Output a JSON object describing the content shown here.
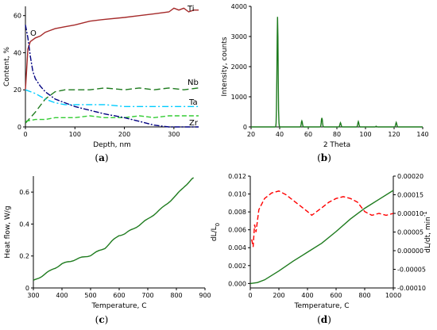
{
  "chart_data": [
    {
      "id": "a",
      "type": "line",
      "caption": "a",
      "xlabel": "Depth, nm",
      "ylabel": "Content, %",
      "xlim": [
        0,
        350
      ],
      "ylim": [
        0,
        65
      ],
      "xticks": [
        0,
        100,
        200,
        300
      ],
      "yticks": [
        0,
        20,
        40,
        60
      ],
      "series": [
        {
          "name": "Ti",
          "color": "#a52a2a",
          "dash": "solid",
          "x": [
            0,
            5,
            10,
            20,
            30,
            40,
            50,
            60,
            80,
            100,
            130,
            160,
            200,
            230,
            260,
            290,
            300,
            310,
            320,
            330,
            340,
            350
          ],
          "y": [
            20,
            42,
            46,
            48,
            49,
            51,
            52,
            53,
            54,
            55,
            57,
            58,
            59,
            60,
            61,
            62,
            64,
            63,
            64,
            62,
            63,
            63
          ]
        },
        {
          "name": "Nb",
          "color": "#1e7b1e",
          "dash": "8,4",
          "x": [
            0,
            20,
            40,
            60,
            80,
            100,
            130,
            160,
            200,
            230,
            260,
            290,
            320,
            350
          ],
          "y": [
            2,
            8,
            15,
            19,
            20,
            20,
            20,
            21,
            20,
            21,
            20,
            21,
            20,
            21
          ]
        },
        {
          "name": "Ta",
          "color": "#00ccff",
          "dash": "8,3,2,3",
          "x": [
            0,
            20,
            40,
            60,
            80,
            100,
            130,
            160,
            200,
            230,
            260,
            290,
            320,
            350
          ],
          "y": [
            20,
            18,
            15,
            13,
            12,
            12,
            12,
            12,
            11,
            11,
            11,
            11,
            11,
            11
          ]
        },
        {
          "name": "Zr",
          "color": "#33cc33",
          "dash": "6,3",
          "x": [
            0,
            20,
            40,
            60,
            80,
            100,
            130,
            160,
            200,
            230,
            260,
            290,
            320,
            350
          ],
          "y": [
            3,
            4,
            4,
            5,
            5,
            5,
            6,
            5,
            5,
            6,
            5,
            6,
            6,
            6
          ]
        },
        {
          "name": "O",
          "color": "#000080",
          "dash": "7,2,2,2",
          "x": [
            0,
            5,
            10,
            15,
            20,
            30,
            40,
            60,
            80,
            100,
            130,
            160,
            200,
            230,
            260,
            290,
            320,
            350
          ],
          "y": [
            55,
            48,
            38,
            30,
            26,
            22,
            19,
            15,
            13,
            11,
            9,
            7,
            5,
            3,
            1,
            0,
            0,
            0
          ]
        }
      ]
    },
    {
      "id": "b",
      "type": "line",
      "caption": "b",
      "xlabel": "2 Theta",
      "ylabel": "Intensity, counts",
      "xlim": [
        20,
        140
      ],
      "ylim": [
        0,
        4000
      ],
      "xticks": [
        20,
        40,
        60,
        80,
        100,
        120,
        140
      ],
      "yticks": [
        0,
        1000,
        2000,
        3000,
        4000
      ],
      "series": [
        {
          "name": "",
          "color": "#1e7b1e",
          "peaks": [
            {
              "x": 38.5,
              "y": 3650
            },
            {
              "x": 55.5,
              "y": 200
            },
            {
              "x": 69.5,
              "y": 300
            },
            {
              "x": 82.5,
              "y": 140
            },
            {
              "x": 95.0,
              "y": 180
            },
            {
              "x": 107.5,
              "y": 20
            },
            {
              "x": 121.5,
              "y": 150
            }
          ]
        }
      ]
    },
    {
      "id": "c",
      "type": "line",
      "caption": "c",
      "xlabel": "Temperature, C",
      "ylabel": "Heat flow, W/g",
      "xlim": [
        300,
        900
      ],
      "ylim": [
        0,
        0.7
      ],
      "xticks": [
        300,
        400,
        500,
        600,
        700,
        800,
        900
      ],
      "yticks": [
        0,
        0.2,
        0.4,
        0.6
      ],
      "series": [
        {
          "name": "",
          "color": "#1e7b1e",
          "x": [
            300,
            330,
            370,
            400,
            450,
            500,
            550,
            580,
            600,
            620,
            650,
            700,
            750,
            800,
            830,
            860
          ],
          "y": [
            0.045,
            0.075,
            0.12,
            0.15,
            0.18,
            0.205,
            0.25,
            0.3,
            0.33,
            0.34,
            0.37,
            0.43,
            0.5,
            0.58,
            0.64,
            0.69
          ]
        }
      ]
    },
    {
      "id": "d",
      "type": "line",
      "caption": "d",
      "xlabel": "Temperature, C",
      "ylabel_left": "dL/L",
      "ylabel_left_sub": "0",
      "ylabel_right": "dL/dt, min",
      "ylabel_right_sup": "-1",
      "xlim": [
        0,
        1000
      ],
      "ylim_left": [
        -0.0005,
        0.012
      ],
      "ylim_right": [
        -0.0001,
        0.0002
      ],
      "xticks": [
        0,
        200,
        400,
        600,
        800,
        1000
      ],
      "yticks_left": [
        "0.000",
        "0.002",
        "0.004",
        "0.006",
        "0.008",
        "0.010",
        "0.012"
      ],
      "yticks_left_values": [
        0,
        0.002,
        0.004,
        0.006,
        0.008,
        0.01,
        0.012
      ],
      "yticks_right": [
        "-0.00010",
        "-0.00005",
        "0.00000",
        "0.00005",
        "0.00010",
        "0.00015",
        "0.00020"
      ],
      "yticks_right_values": [
        -0.0001,
        -5e-05,
        0,
        5e-05,
        0.0001,
        0.00015,
        0.0002
      ],
      "series": [
        {
          "name": "",
          "axis": "left",
          "color": "#1e7b1e",
          "dash": "solid",
          "x": [
            0,
            50,
            100,
            200,
            300,
            400,
            500,
            600,
            700,
            800,
            900,
            1000
          ],
          "y": [
            0.0,
            0.0001,
            0.0004,
            0.0014,
            0.0025,
            0.0035,
            0.0045,
            0.0058,
            0.0072,
            0.0084,
            0.0094,
            0.0104
          ]
        },
        {
          "name": "",
          "axis": "right",
          "color": "#ff0000",
          "dash": "6,3",
          "x": [
            10,
            20,
            25,
            30,
            40,
            60,
            100,
            150,
            200,
            250,
            300,
            350,
            400,
            430,
            500,
            550,
            600,
            650,
            700,
            750,
            800,
            850,
            900,
            950,
            1000
          ],
          "y": [
            3e-05,
            1e-05,
            4e-05,
            7e-05,
            5e-05,
            0.00011,
            0.00014,
            0.000155,
            0.00016,
            0.00015,
            0.000135,
            0.00012,
            0.000105,
            9.5e-05,
            0.000115,
            0.00013,
            0.00014,
            0.000145,
            0.00014,
            0.00013,
            0.000105,
            9.5e-05,
            0.0001,
            9.5e-05,
            0.0001
          ]
        }
      ]
    }
  ]
}
